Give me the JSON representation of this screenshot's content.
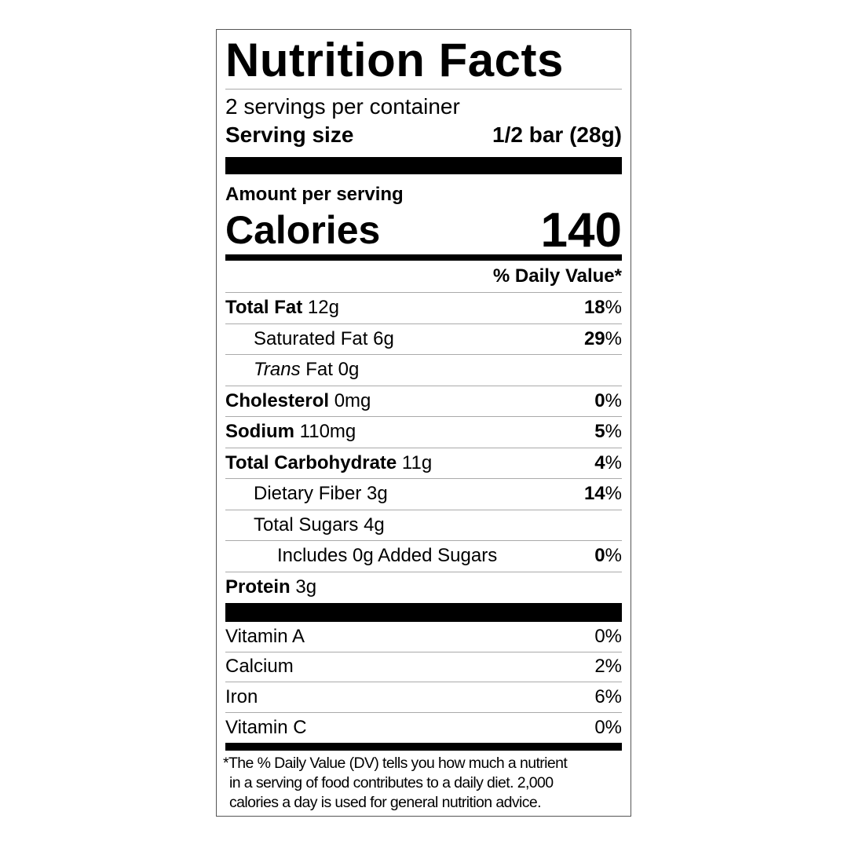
{
  "title": "Nutrition Facts",
  "servings_per_container": "2 servings per container",
  "serving_size": {
    "label": "Serving size",
    "value": "1/2 bar (28g)"
  },
  "amount_per_serving": "Amount per serving",
  "calories": {
    "label": "Calories",
    "value": "140"
  },
  "daily_value_header": "% Daily Value*",
  "nutrients": [
    {
      "name": "Total Fat",
      "amount": "12g",
      "dv": "18%",
      "bold": true,
      "indent": 0
    },
    {
      "name": "Saturated Fat",
      "amount": "6g",
      "dv": "29%",
      "bold": false,
      "indent": 1
    },
    {
      "name_italic": "Trans",
      "name": "Fat",
      "amount": "0g",
      "dv": "",
      "bold": false,
      "indent": 1
    },
    {
      "name": "Cholesterol",
      "amount": "0mg",
      "dv": "0%",
      "bold": true,
      "indent": 0
    },
    {
      "name": "Sodium",
      "amount": "110mg",
      "dv": "5%",
      "bold": true,
      "indent": 0
    },
    {
      "name": "Total Carbohydrate",
      "amount": "11g",
      "dv": "4%",
      "bold": true,
      "indent": 0
    },
    {
      "name": "Dietary Fiber",
      "amount": "3g",
      "dv": "14%",
      "bold": false,
      "indent": 1
    },
    {
      "name": "Total Sugars",
      "amount": "4g",
      "dv": "",
      "bold": false,
      "indent": 1
    },
    {
      "name": "Includes 0g Added Sugars",
      "amount": "",
      "dv": "0%",
      "bold": false,
      "indent": 2
    },
    {
      "name": "Protein",
      "amount": "3g",
      "dv": "",
      "bold": true,
      "indent": 0
    }
  ],
  "vitamins": [
    {
      "name": "Vitamin A",
      "dv": "0%"
    },
    {
      "name": "Calcium",
      "dv": "2%"
    },
    {
      "name": "Iron",
      "dv": "6%"
    },
    {
      "name": "Vitamin C",
      "dv": "0%"
    }
  ],
  "footnote": [
    "*The % Daily Value (DV) tells you how much a nutrient",
    "in a serving of food contributes to a daily diet. 2,000",
    "calories a day is used for general nutrition advice."
  ]
}
